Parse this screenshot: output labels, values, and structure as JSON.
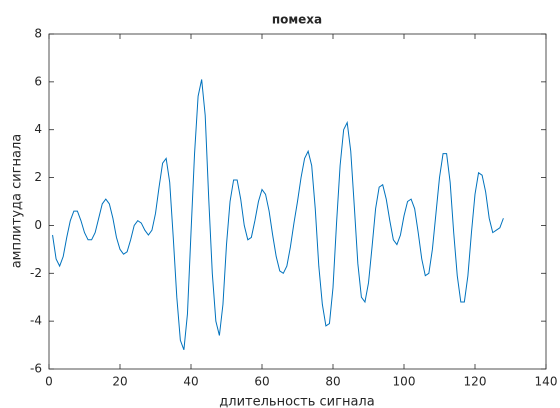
{
  "chart_data": {
    "type": "line",
    "title": "помеха",
    "xlabel": "длительность сигнала",
    "ylabel": "амплитуда сигнала",
    "x": [
      1,
      2,
      3,
      4,
      5,
      6,
      7,
      8,
      9,
      10,
      11,
      12,
      13,
      14,
      15,
      16,
      17,
      18,
      19,
      20,
      21,
      22,
      23,
      24,
      25,
      26,
      27,
      28,
      29,
      30,
      31,
      32,
      33,
      34,
      35,
      36,
      37,
      38,
      39,
      40,
      41,
      42,
      43,
      44,
      45,
      46,
      47,
      48,
      49,
      50,
      51,
      52,
      53,
      54,
      55,
      56,
      57,
      58,
      59,
      60,
      61,
      62,
      63,
      64,
      65,
      66,
      67,
      68,
      69,
      70,
      71,
      72,
      73,
      74,
      75,
      76,
      77,
      78,
      79,
      80,
      81,
      82,
      83,
      84,
      85,
      86,
      87,
      88,
      89,
      90,
      91,
      92,
      93,
      94,
      95,
      96,
      97,
      98,
      99,
      100,
      101,
      102,
      103,
      104,
      105,
      106,
      107,
      108,
      109,
      110,
      111,
      112,
      113,
      114,
      115,
      116,
      117,
      118,
      119,
      120,
      121,
      122,
      123,
      124,
      125,
      126,
      127,
      128
    ],
    "series": [
      {
        "color": "#0072bd",
        "values": [
          -0.4,
          -1.4,
          -1.7,
          -1.3,
          -0.5,
          0.2,
          0.6,
          0.6,
          0.2,
          -0.3,
          -0.6,
          -0.6,
          -0.3,
          0.3,
          0.9,
          1.1,
          0.9,
          0.3,
          -0.5,
          -1.0,
          -1.2,
          -1.1,
          -0.6,
          0.0,
          0.2,
          0.1,
          -0.2,
          -0.4,
          -0.2,
          0.5,
          1.6,
          2.6,
          2.8,
          1.8,
          -0.5,
          -3.0,
          -4.8,
          -5.2,
          -3.7,
          -0.3,
          3.0,
          5.4,
          6.1,
          4.6,
          1.1,
          -2.0,
          -4.0,
          -4.6,
          -3.3,
          -0.8,
          1.0,
          1.9,
          1.9,
          1.1,
          0.0,
          -0.6,
          -0.5,
          0.2,
          1.0,
          1.5,
          1.3,
          0.6,
          -0.4,
          -1.3,
          -1.9,
          -2.0,
          -1.7,
          -0.9,
          0.1,
          1.0,
          2.0,
          2.8,
          3.1,
          2.5,
          0.7,
          -1.7,
          -3.3,
          -4.2,
          -4.1,
          -2.6,
          0.1,
          2.5,
          4.0,
          4.3,
          3.1,
          0.8,
          -1.6,
          -3.0,
          -3.2,
          -2.4,
          -0.9,
          0.7,
          1.6,
          1.7,
          1.1,
          0.2,
          -0.6,
          -0.8,
          -0.4,
          0.4,
          1.0,
          1.1,
          0.7,
          -0.3,
          -1.4,
          -2.1,
          -2.0,
          -1.0,
          0.5,
          2.0,
          3.0,
          3.0,
          1.8,
          -0.3,
          -2.1,
          -3.2,
          -3.2,
          -2.1,
          -0.3,
          1.3,
          2.2,
          2.1,
          1.4,
          0.3,
          -0.3,
          -0.2,
          -0.1,
          0.3
        ]
      }
    ],
    "xlim": [
      0,
      140
    ],
    "xticks": [
      0,
      20,
      40,
      60,
      80,
      100,
      120,
      140
    ],
    "ylim": [
      -6,
      8
    ],
    "yticks": [
      -6,
      -4,
      -2,
      0,
      2,
      4,
      6,
      8
    ]
  }
}
